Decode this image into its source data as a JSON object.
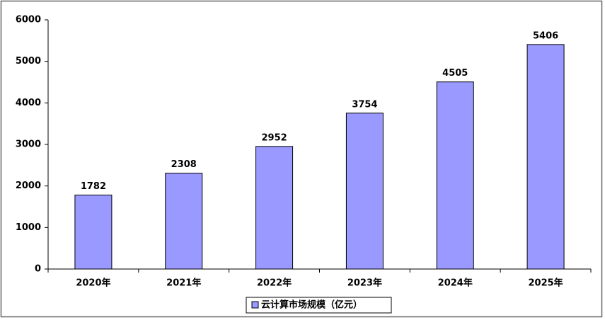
{
  "chart_data": {
    "type": "bar",
    "categories": [
      "2020年",
      "2021年",
      "2022年",
      "2023年",
      "2024年",
      "2025年"
    ],
    "series": [
      {
        "name": "云计算市场规模（亿元）",
        "color": "#9999ff",
        "values": [
          1782,
          2308,
          2952,
          3754,
          4505,
          5406
        ]
      }
    ],
    "ylim": [
      0,
      6000
    ],
    "yticks": [
      0,
      1000,
      2000,
      3000,
      4000,
      5000,
      6000
    ],
    "grid": false,
    "data_labels": true,
    "legend": "bottom"
  }
}
